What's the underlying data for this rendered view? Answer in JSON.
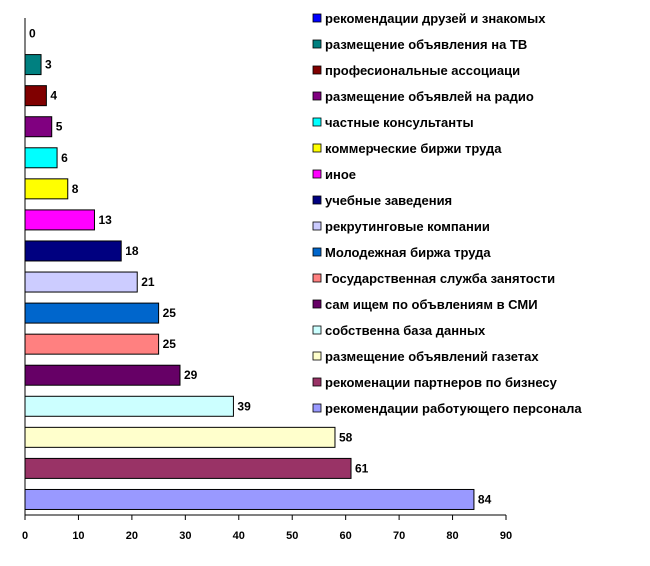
{
  "chart_data": {
    "type": "bar",
    "orientation": "horizontal",
    "xlim": [
      0,
      90
    ],
    "ticks": [
      "0",
      "10",
      "20",
      "30",
      "40",
      "50",
      "60",
      "70",
      "80",
      "90"
    ],
    "grid": false,
    "legend_position": "right",
    "series": [
      {
        "name": "рекомендации друзей и знакомых",
        "value": 0,
        "label": "0",
        "color": "#0000FF"
      },
      {
        "name": "размещение объявления на ТВ",
        "value": 3,
        "label": "3",
        "color": "#008080"
      },
      {
        "name": "професиональные ассоциаци",
        "value": 4,
        "label": "4",
        "color": "#800000"
      },
      {
        "name": "размещение объявлей на радио",
        "value": 5,
        "label": "5",
        "color": "#800080"
      },
      {
        "name": "частные консультанты",
        "value": 6,
        "label": "6",
        "color": "#00FFFF"
      },
      {
        "name": "коммерческие биржи труда",
        "value": 8,
        "label": "8",
        "color": "#FFFF00"
      },
      {
        "name": "иное",
        "value": 13,
        "label": "13",
        "color": "#FF00FF"
      },
      {
        "name": "учебные заведения",
        "value": 18,
        "label": "18",
        "color": "#000080"
      },
      {
        "name": "рекрутинговые компании",
        "value": 21,
        "label": "21",
        "color": "#CCCCFF"
      },
      {
        "name": "Молодежная биржа труда",
        "value": 25,
        "label": "25",
        "color": "#0066CC"
      },
      {
        "name": "Государственная служба занятости",
        "value": 25,
        "label": "25",
        "color": "#FF8080"
      },
      {
        "name": "сам ищем по объвлениям в СМИ",
        "value": 29,
        "label": "29",
        "color": "#660066"
      },
      {
        "name": "собственна база данных",
        "value": 39,
        "label": "39",
        "color": "#CCFFFF"
      },
      {
        "name": "размещение объявлений  газетах",
        "value": 58,
        "label": "58",
        "color": "#FFFFCC"
      },
      {
        "name": "рекоменации партнеров по бизнесу",
        "value": 61,
        "label": "61",
        "color": "#993366"
      },
      {
        "name": "рекомендации работующего персонала",
        "value": 84,
        "label": "84",
        "color": "#9999FF"
      }
    ]
  }
}
